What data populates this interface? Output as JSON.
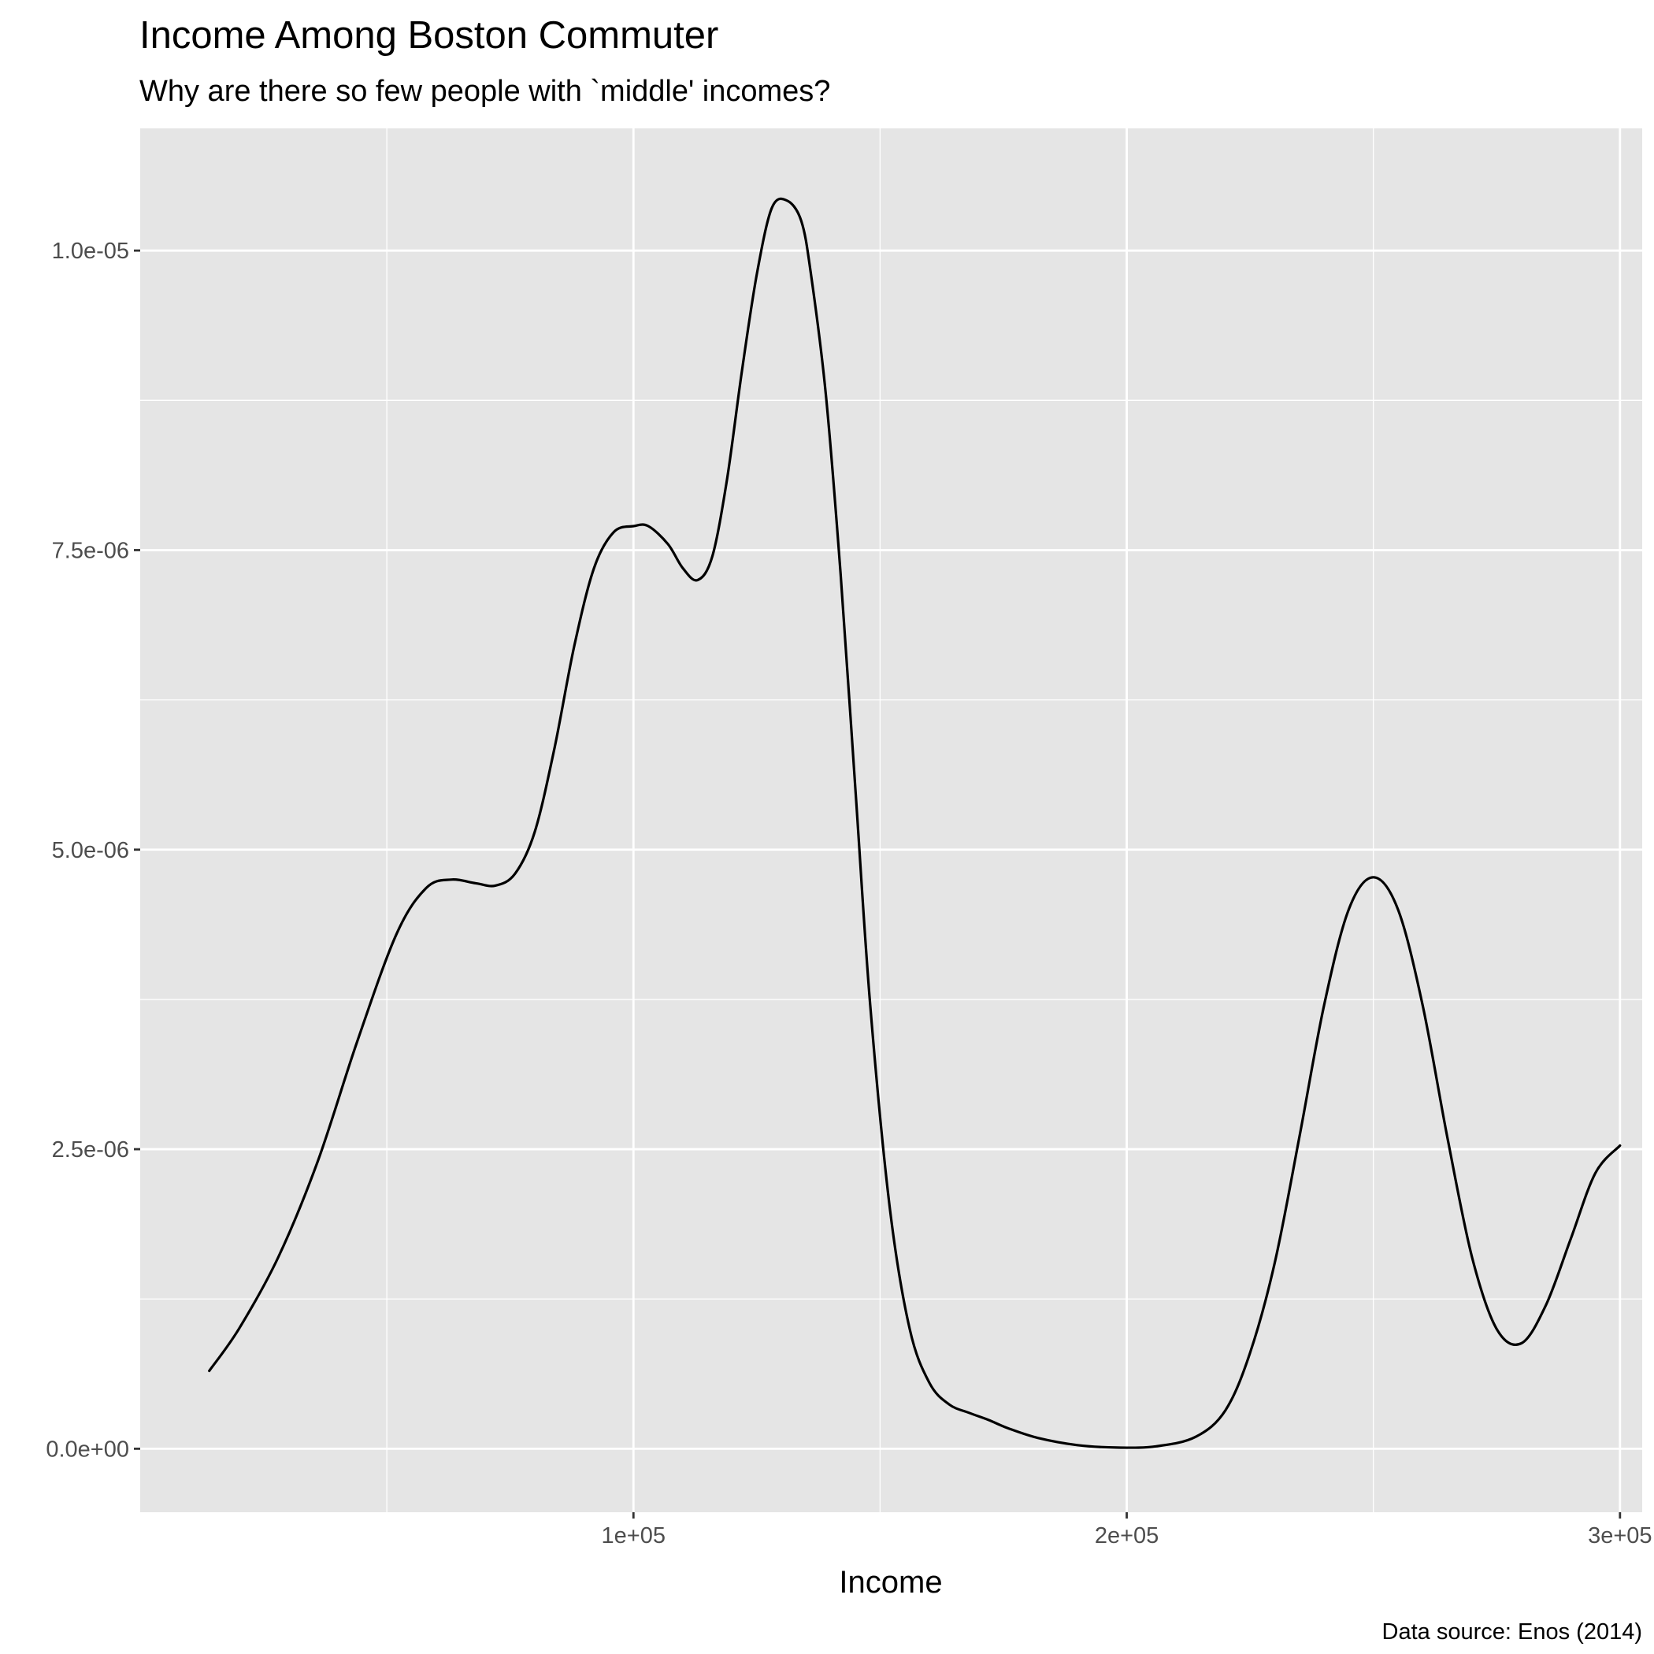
{
  "chart_data": {
    "type": "area",
    "title": "Income Among Boston Commuter",
    "subtitle": "Why are there so few people with `middle' incomes?",
    "xlabel": "Income",
    "ylabel": "",
    "caption": "Data source: Enos (2014)",
    "xlim": [
      0,
      304500
    ],
    "ylim": [
      -5.3e-07,
      1.102e-05
    ],
    "x_ticks": [
      {
        "value": 100000,
        "label": "1e+05"
      },
      {
        "value": 200000,
        "label": "2e+05"
      },
      {
        "value": 300000,
        "label": "3e+05"
      }
    ],
    "x_minor_ticks": [
      50000,
      150000,
      250000
    ],
    "y_ticks": [
      {
        "value": 0,
        "label": "0.0e+00"
      },
      {
        "value": 2.5e-06,
        "label": "2.5e-06"
      },
      {
        "value": 5e-06,
        "label": "5.0e-06"
      },
      {
        "value": 7.5e-06,
        "label": "7.5e-06"
      },
      {
        "value": 1e-05,
        "label": "1.0e-05"
      }
    ],
    "y_minor_ticks": [
      1.25e-06,
      3.75e-06,
      6.25e-06,
      8.75e-06
    ],
    "grid": true,
    "line_color": "#000000",
    "panel_color": "#e5e5e5",
    "grid_color": "#ffffff",
    "series": [
      {
        "x": [
          14000,
          20000,
          28000,
          36000,
          44000,
          52000,
          58000,
          63000,
          68000,
          72000,
          76000,
          80000,
          84000,
          88000,
          92000,
          96000,
          100000,
          103000,
          107000,
          110000,
          113000,
          116000,
          119000,
          122000,
          125000,
          128000,
          131000,
          134000,
          136000,
          139000,
          142000,
          145000,
          148000,
          152000,
          156000,
          160000,
          164000,
          168000,
          172000,
          176000,
          182000,
          190000,
          198000,
          206000,
          214000,
          220000,
          225000,
          230000,
          235000,
          240000,
          245000,
          250000,
          255000,
          260000,
          265000,
          270000,
          275000,
          280000,
          285000,
          290000,
          295000,
          300000
        ],
        "y": [
          6.5e-07,
          1e-06,
          1.6e-06,
          2.4e-06,
          3.4e-06,
          4.3e-06,
          4.68e-06,
          4.75e-06,
          4.72e-06,
          4.7e-06,
          4.8e-06,
          5.15e-06,
          5.85e-06,
          6.7e-06,
          7.35e-06,
          7.65e-06,
          7.7e-06,
          7.7e-06,
          7.55e-06,
          7.35e-06,
          7.25e-06,
          7.45e-06,
          8.1e-06,
          9e-06,
          9.8e-06,
          1.035e-05,
          1.042e-05,
          1.025e-05,
          9.8e-06,
          8.8e-06,
          7.3e-06,
          5.5e-06,
          3.7e-06,
          2e-06,
          1e-06,
          5.5e-07,
          3.7e-07,
          3e-07,
          2.4e-07,
          1.7e-07,
          9e-08,
          3e-08,
          1e-08,
          2e-08,
          1e-07,
          3.2e-07,
          8e-07,
          1.55e-06,
          2.6e-06,
          3.7e-06,
          4.5e-06,
          4.77e-06,
          4.5e-06,
          3.7e-06,
          2.6e-06,
          1.6e-06,
          1e-06,
          8.8e-07,
          1.2e-06,
          1.75e-06,
          2.3e-06,
          2.53e-06
        ]
      }
    ]
  }
}
